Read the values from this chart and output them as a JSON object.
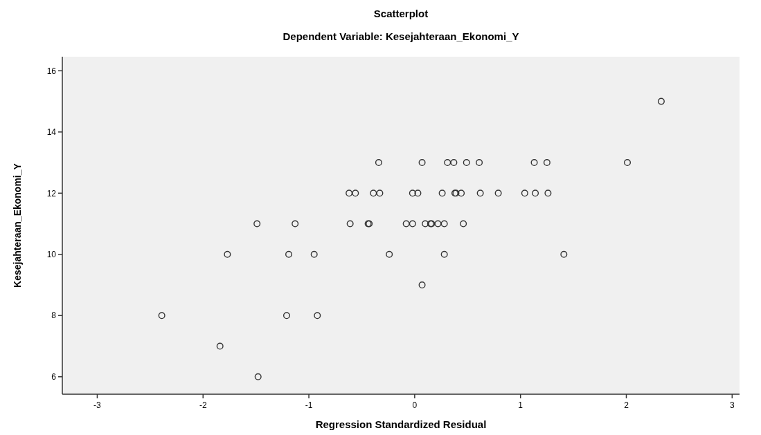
{
  "chart_data": {
    "type": "scatter",
    "title": "Scatterplot",
    "subtitle": "Dependent Variable: Kesejahteraan_Ekonomi_Y",
    "xlabel": "Regression Standardized Residual",
    "ylabel": "Kesejahteraan_Ekonomi_Y",
    "xlim": [
      -3.33,
      3.07
    ],
    "ylim": [
      5.43,
      16.46
    ],
    "xticks": [
      -3,
      -2,
      -1,
      0,
      1,
      2,
      3
    ],
    "yticks": [
      6,
      8,
      10,
      12,
      14,
      16
    ],
    "grid": false,
    "marker": "circle",
    "series": [
      {
        "color": "#333333",
        "x": [
          2.33,
          -0.34,
          0.07,
          0.31,
          0.37,
          0.49,
          0.61,
          1.13,
          1.25,
          2.01,
          -0.62,
          -0.56,
          -0.39,
          -0.33,
          -0.02,
          0.03,
          0.26,
          0.38,
          0.39,
          0.44,
          0.62,
          0.79,
          1.04,
          1.14,
          1.26,
          -1.49,
          -1.13,
          -0.61,
          -0.44,
          -0.43,
          -0.08,
          -0.02,
          0.1,
          0.15,
          0.16,
          0.22,
          0.28,
          0.46,
          -1.77,
          -1.19,
          -0.95,
          -0.24,
          0.28,
          1.41,
          0.07,
          -2.39,
          -1.21,
          -0.92,
          -1.84,
          -1.48
        ],
        "values": [
          15,
          13,
          13,
          13,
          13,
          13,
          13,
          13,
          13,
          13,
          12,
          12,
          12,
          12,
          12,
          12,
          12,
          12,
          12,
          12,
          12,
          12,
          12,
          12,
          12,
          11,
          11,
          11,
          11,
          11,
          11,
          11,
          11,
          11,
          11,
          11,
          11,
          11,
          10,
          10,
          10,
          10,
          10,
          10,
          9,
          8,
          8,
          8,
          7,
          6
        ]
      }
    ]
  }
}
